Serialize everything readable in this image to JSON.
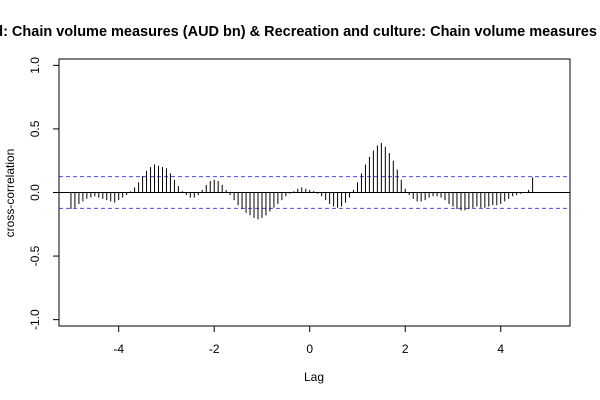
{
  "chart_data": {
    "type": "bar",
    "title": "d: Chain volume measures (AUD bn) & Recreation and culture: Chain volume measures (",
    "xlabel": "Lag",
    "ylabel": "cross-correlation",
    "xlim": [
      -5.25,
      5.45
    ],
    "ylim": [
      -1.05,
      1.05
    ],
    "x_ticks": [
      -4,
      -2,
      0,
      2,
      4
    ],
    "x_tick_labels": [
      "-4",
      "-2",
      "0",
      "2",
      "4"
    ],
    "y_ticks": [
      -1.0,
      -0.5,
      0.0,
      0.5,
      1.0
    ],
    "y_tick_labels": [
      "-1.0",
      "-0.5",
      "0.0",
      "0.5",
      "1.0"
    ],
    "confidence_band": 0.125,
    "grid": false,
    "colors": {
      "bars": "#000000",
      "confidence": "#4a4af0",
      "zero_line": "#000000"
    },
    "lags": [
      -5.0,
      -4.917,
      -4.833,
      -4.75,
      -4.667,
      -4.583,
      -4.5,
      -4.417,
      -4.333,
      -4.25,
      -4.167,
      -4.083,
      -4.0,
      -3.917,
      -3.833,
      -3.75,
      -3.667,
      -3.583,
      -3.5,
      -3.417,
      -3.333,
      -3.25,
      -3.167,
      -3.083,
      -3.0,
      -2.917,
      -2.833,
      -2.75,
      -2.667,
      -2.583,
      -2.5,
      -2.417,
      -2.333,
      -2.25,
      -2.167,
      -2.083,
      -2.0,
      -1.917,
      -1.833,
      -1.75,
      -1.667,
      -1.583,
      -1.5,
      -1.417,
      -1.333,
      -1.25,
      -1.167,
      -1.083,
      -1.0,
      -0.917,
      -0.833,
      -0.75,
      -0.667,
      -0.583,
      -0.5,
      -0.417,
      -0.333,
      -0.25,
      -0.167,
      -0.083,
      0.0,
      0.083,
      0.167,
      0.25,
      0.333,
      0.417,
      0.5,
      0.583,
      0.667,
      0.75,
      0.833,
      0.917,
      1.0,
      1.083,
      1.167,
      1.25,
      1.333,
      1.417,
      1.5,
      1.583,
      1.667,
      1.75,
      1.833,
      1.917,
      2.0,
      2.083,
      2.167,
      2.25,
      2.333,
      2.417,
      2.5,
      2.583,
      2.667,
      2.75,
      2.833,
      2.917,
      3.0,
      3.083,
      3.167,
      3.25,
      3.333,
      3.417,
      3.5,
      3.583,
      3.667,
      3.75,
      3.833,
      3.917,
      4.0,
      4.083,
      4.167,
      4.25,
      4.333,
      4.417,
      4.5,
      4.583,
      4.667,
      4.75,
      4.833,
      4.917,
      5.0
    ],
    "values": [
      -0.13,
      -0.12,
      -0.09,
      -0.07,
      -0.05,
      -0.04,
      -0.03,
      -0.04,
      -0.05,
      -0.06,
      -0.07,
      -0.08,
      -0.06,
      -0.04,
      -0.02,
      0.01,
      0.04,
      0.08,
      0.13,
      0.17,
      0.2,
      0.22,
      0.21,
      0.2,
      0.19,
      0.15,
      0.1,
      0.05,
      0.01,
      -0.02,
      -0.04,
      -0.04,
      -0.02,
      0.02,
      0.06,
      0.09,
      0.1,
      0.09,
      0.06,
      0.02,
      -0.02,
      -0.06,
      -0.1,
      -0.13,
      -0.16,
      -0.18,
      -0.2,
      -0.21,
      -0.2,
      -0.18,
      -0.15,
      -0.12,
      -0.09,
      -0.06,
      -0.03,
      -0.01,
      0.01,
      0.03,
      0.04,
      0.03,
      0.02,
      0.01,
      -0.01,
      -0.03,
      -0.06,
      -0.09,
      -0.11,
      -0.12,
      -0.11,
      -0.08,
      -0.04,
      0.02,
      0.08,
      0.15,
      0.22,
      0.28,
      0.33,
      0.37,
      0.39,
      0.36,
      0.31,
      0.25,
      0.18,
      0.1,
      0.03,
      -0.02,
      -0.05,
      -0.07,
      -0.07,
      -0.06,
      -0.04,
      -0.03,
      -0.03,
      -0.04,
      -0.06,
      -0.09,
      -0.11,
      -0.13,
      -0.14,
      -0.14,
      -0.13,
      -0.12,
      -0.11,
      -0.12,
      -0.12,
      -0.11,
      -0.1,
      -0.1,
      -0.09,
      -0.07,
      -0.05,
      -0.03,
      -0.02,
      -0.01,
      0.0,
      0.02,
      0.12,
      0.0,
      0.0,
      0.0,
      0.0
    ]
  }
}
